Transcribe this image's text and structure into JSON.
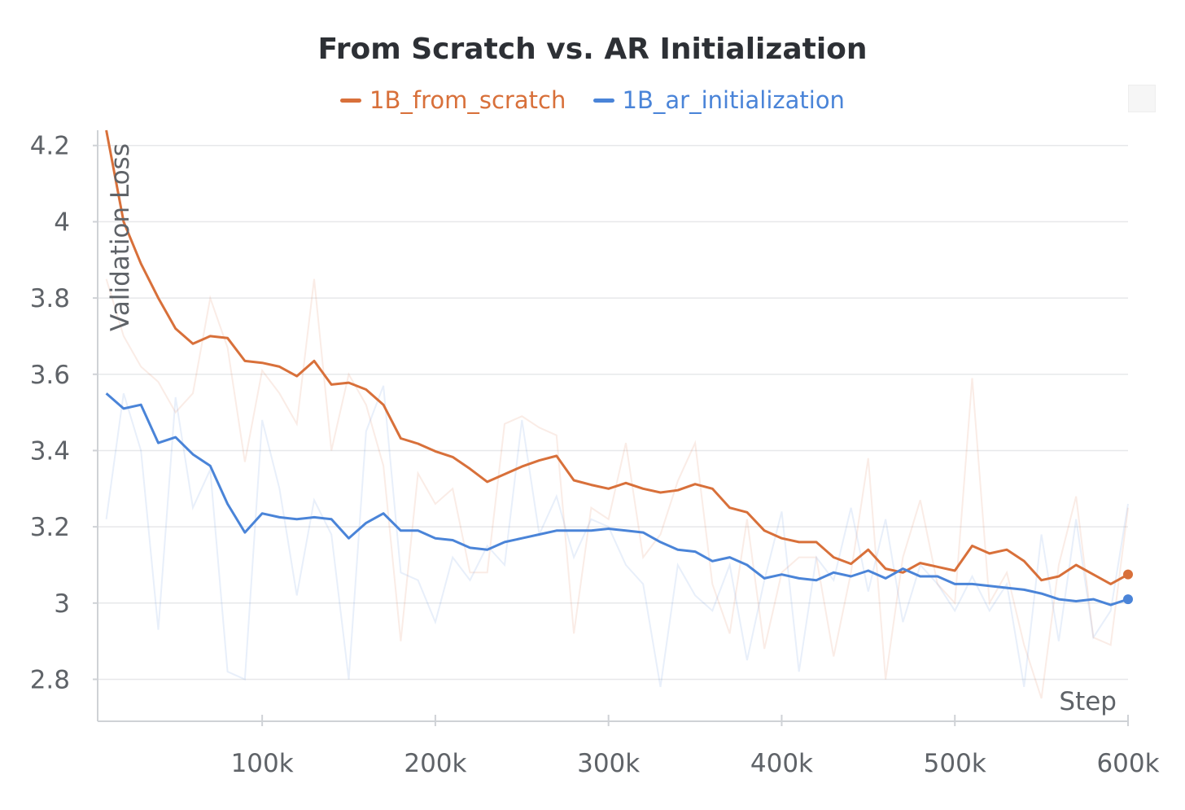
{
  "title": "From Scratch vs. AR Initialization",
  "legend": [
    {
      "label": "1B_from_scratch",
      "color": "#d8703a"
    },
    {
      "label": "1B_ar_initialization",
      "color": "#4a84d8"
    }
  ],
  "chart_data": {
    "type": "line",
    "title": "From Scratch vs. AR Initialization",
    "xlabel": "Step",
    "ylabel": "Validation Loss",
    "xlim": [
      5000,
      600000
    ],
    "ylim": [
      2.69,
      4.24
    ],
    "x_ticks": [
      100000,
      200000,
      300000,
      400000,
      500000,
      600000
    ],
    "x_tick_labels": [
      "100k",
      "200k",
      "300k",
      "400k",
      "500k",
      "600k"
    ],
    "y_ticks": [
      2.8,
      3,
      3.2,
      3.4,
      3.6,
      3.8,
      4,
      4.2
    ],
    "y_tick_labels": [
      "2.8",
      "3",
      "3.2",
      "3.4",
      "3.6",
      "3.8",
      "4",
      "4.2"
    ],
    "grid": true,
    "legend_position": "top-center",
    "x": [
      10000,
      20000,
      30000,
      40000,
      50000,
      60000,
      70000,
      80000,
      90000,
      100000,
      110000,
      120000,
      130000,
      140000,
      150000,
      160000,
      170000,
      180000,
      190000,
      200000,
      210000,
      220000,
      230000,
      240000,
      250000,
      260000,
      270000,
      280000,
      290000,
      300000,
      310000,
      320000,
      330000,
      340000,
      350000,
      360000,
      370000,
      380000,
      390000,
      400000,
      410000,
      420000,
      430000,
      440000,
      450000,
      460000,
      470000,
      480000,
      490000,
      500000,
      510000,
      520000,
      530000,
      540000,
      550000,
      560000,
      570000,
      580000,
      590000,
      600000
    ],
    "series": [
      {
        "name": "1B_from_scratch",
        "color": "#d8703a",
        "values": [
          4.24,
          4.0,
          3.89,
          3.8,
          3.72,
          3.68,
          3.7,
          3.695,
          3.635,
          3.63,
          3.62,
          3.595,
          3.635,
          3.573,
          3.578,
          3.56,
          3.52,
          3.432,
          3.418,
          3.398,
          3.383,
          3.352,
          3.318,
          3.338,
          3.358,
          3.374,
          3.386,
          3.322,
          3.31,
          3.3,
          3.315,
          3.3,
          3.29,
          3.296,
          3.312,
          3.3,
          3.25,
          3.238,
          3.19,
          3.17,
          3.16,
          3.16,
          3.12,
          3.103,
          3.14,
          3.09,
          3.08,
          3.105,
          3.095,
          3.085,
          3.15,
          3.13,
          3.14,
          3.11,
          3.06,
          3.07,
          3.1,
          3.075,
          3.05,
          3.075
        ],
        "raw_values": [
          3.85,
          3.7,
          3.62,
          3.58,
          3.5,
          3.55,
          3.8,
          3.67,
          3.37,
          3.61,
          3.55,
          3.47,
          3.85,
          3.4,
          3.6,
          3.52,
          3.36,
          2.9,
          3.34,
          3.26,
          3.3,
          3.08,
          3.08,
          3.47,
          3.49,
          3.46,
          3.44,
          2.92,
          3.25,
          3.22,
          3.42,
          3.12,
          3.18,
          3.32,
          3.42,
          3.05,
          2.92,
          3.22,
          2.88,
          3.08,
          3.12,
          3.12,
          2.86,
          3.08,
          3.38,
          2.8,
          3.12,
          3.27,
          3.05,
          3.0,
          3.59,
          3.0,
          3.08,
          2.89,
          2.75,
          3.1,
          3.28,
          2.91,
          2.89,
          3.25
        ]
      },
      {
        "name": "1B_ar_initialization",
        "color": "#4a84d8",
        "values": [
          3.55,
          3.51,
          3.52,
          3.42,
          3.435,
          3.39,
          3.36,
          3.26,
          3.185,
          3.235,
          3.225,
          3.22,
          3.225,
          3.22,
          3.17,
          3.21,
          3.235,
          3.19,
          3.19,
          3.17,
          3.165,
          3.145,
          3.14,
          3.16,
          3.17,
          3.18,
          3.19,
          3.19,
          3.19,
          3.195,
          3.19,
          3.185,
          3.16,
          3.14,
          3.135,
          3.11,
          3.12,
          3.1,
          3.065,
          3.075,
          3.065,
          3.06,
          3.08,
          3.07,
          3.085,
          3.065,
          3.09,
          3.07,
          3.07,
          3.05,
          3.05,
          3.045,
          3.04,
          3.035,
          3.025,
          3.01,
          3.005,
          3.01,
          2.995,
          3.01
        ],
        "raw_values": [
          3.22,
          3.55,
          3.4,
          2.93,
          3.54,
          3.25,
          3.35,
          2.82,
          2.8,
          3.48,
          3.3,
          3.02,
          3.27,
          3.18,
          2.8,
          3.45,
          3.57,
          3.08,
          3.06,
          2.95,
          3.12,
          3.06,
          3.15,
          3.1,
          3.48,
          3.18,
          3.28,
          3.12,
          3.22,
          3.2,
          3.1,
          3.05,
          2.78,
          3.1,
          3.02,
          2.98,
          3.1,
          2.85,
          3.06,
          3.24,
          2.82,
          3.12,
          3.06,
          3.25,
          3.03,
          3.22,
          2.95,
          3.1,
          3.05,
          2.98,
          3.07,
          2.98,
          3.05,
          2.78,
          3.18,
          2.9,
          3.22,
          2.91,
          2.98,
          3.26
        ]
      }
    ]
  }
}
